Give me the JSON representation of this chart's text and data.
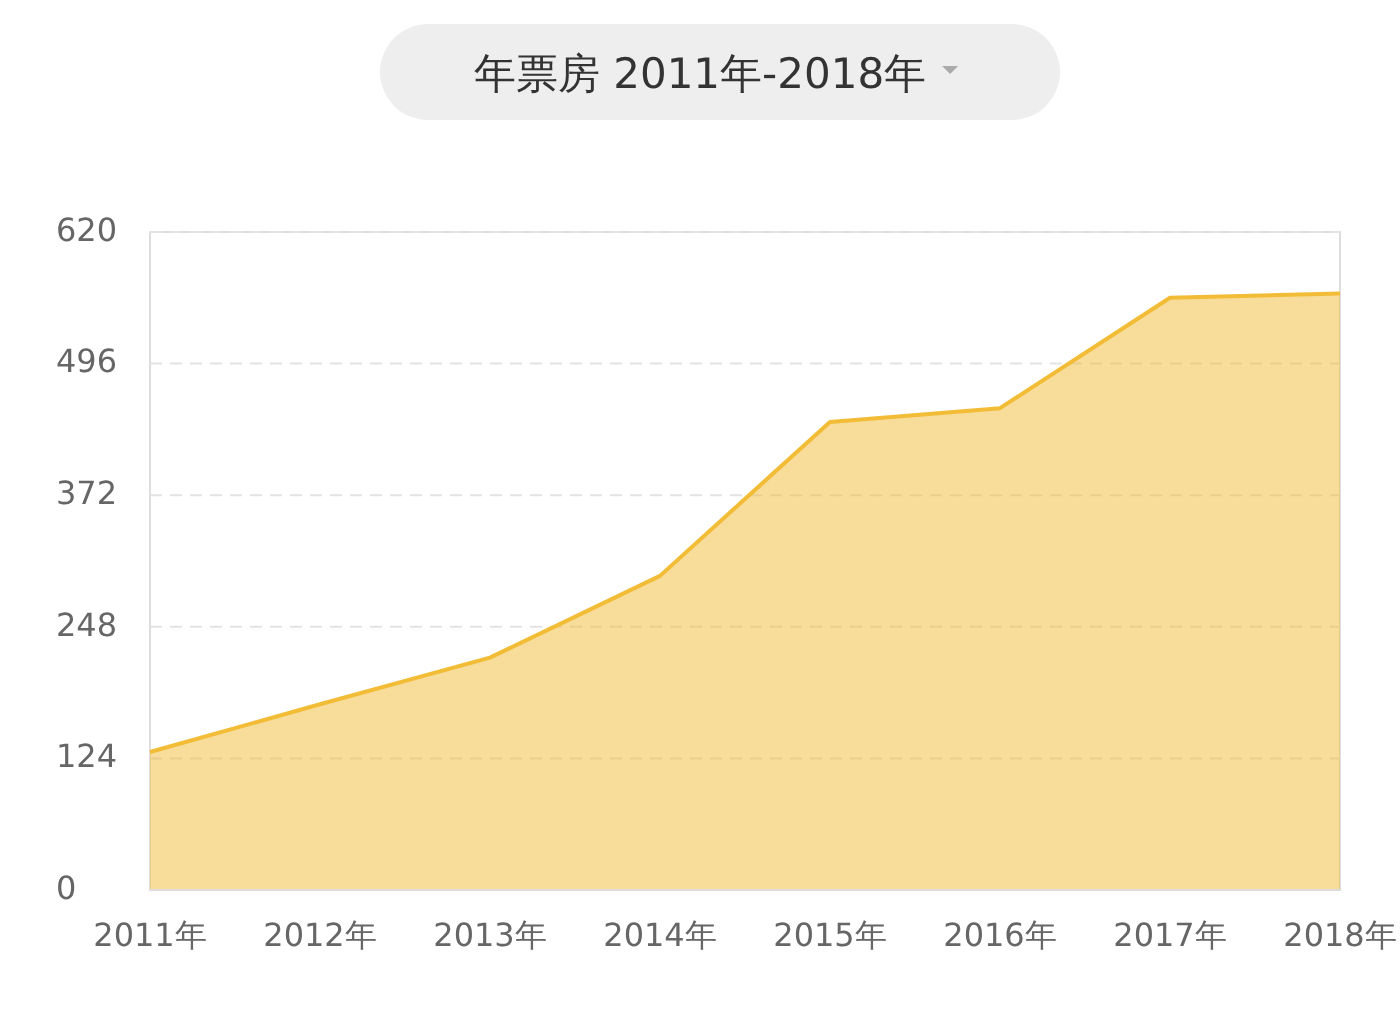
{
  "chart_data": {
    "type": "area",
    "title": "年票房 2011年-2018年",
    "categories": [
      "2011年",
      "2012年",
      "2013年",
      "2014年",
      "2015年",
      "2016年",
      "2017年",
      "2018年"
    ],
    "series": [
      {
        "color": "#f2bc36",
        "values": [
          130,
          175,
          219,
          296,
          441,
          454,
          558,
          562
        ]
      }
    ],
    "ylim": [
      0,
      620
    ],
    "yticks": [
      0,
      124,
      248,
      372,
      496,
      620
    ],
    "grid": "y"
  }
}
